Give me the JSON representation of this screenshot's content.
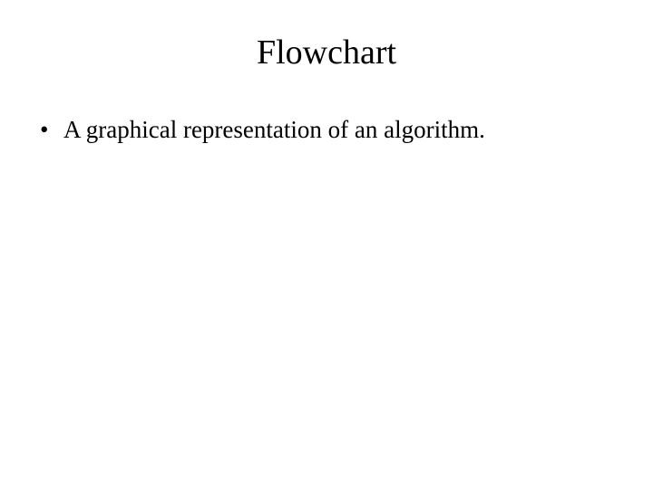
{
  "slide": {
    "title": "Flowchart",
    "bullets": [
      "A graphical representation of an algorithm."
    ],
    "title_fontsize": 38,
    "body_fontsize": 27,
    "background_color": "#ffffff",
    "text_color": "#000000",
    "font_family": "Times New Roman"
  }
}
